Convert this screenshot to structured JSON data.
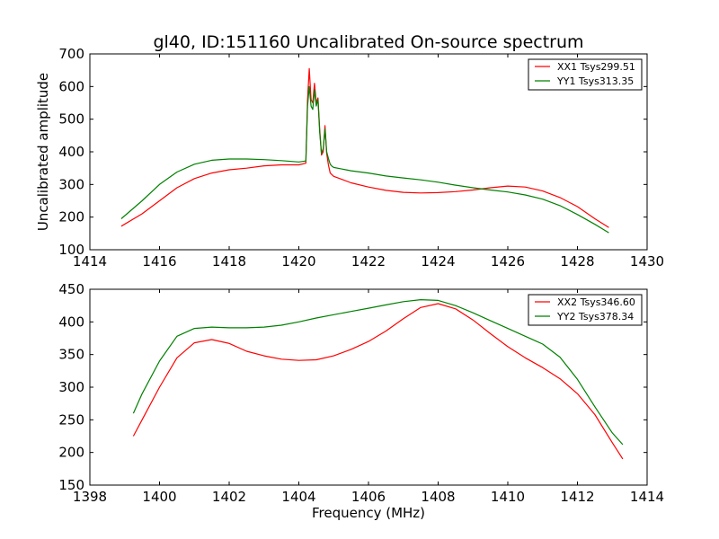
{
  "chart_data": [
    {
      "type": "line",
      "title": "gl40, ID:151160 Uncalibrated On-source spectrum",
      "xlabel": "",
      "ylabel": "Uncalibrated amplitude",
      "xlim": [
        1414,
        1430
      ],
      "ylim": [
        100,
        700
      ],
      "xticks": [
        "1414",
        "1416",
        "1418",
        "1420",
        "1422",
        "1424",
        "1426",
        "1428",
        "1430"
      ],
      "yticks": [
        "100",
        "200",
        "300",
        "400",
        "500",
        "600",
        "700"
      ],
      "legend_position": "top-right",
      "series": [
        {
          "name": "XX1 Tsys299.51",
          "color": "#ff0000",
          "x": [
            1414.9,
            1415.5,
            1416.0,
            1416.5,
            1417.0,
            1417.5,
            1418.0,
            1418.5,
            1419.0,
            1419.5,
            1420.0,
            1420.2,
            1420.25,
            1420.3,
            1420.35,
            1420.4,
            1420.45,
            1420.5,
            1420.55,
            1420.6,
            1420.65,
            1420.7,
            1420.75,
            1420.8,
            1420.85,
            1420.9,
            1420.95,
            1421.0,
            1421.5,
            1422.0,
            1422.5,
            1423.0,
            1423.5,
            1424.0,
            1424.5,
            1425.0,
            1425.5,
            1426.0,
            1426.5,
            1427.0,
            1427.5,
            1428.0,
            1428.5,
            1428.9
          ],
          "values": [
            172,
            210,
            250,
            290,
            318,
            335,
            345,
            350,
            357,
            360,
            360,
            365,
            560,
            655,
            560,
            550,
            610,
            550,
            565,
            470,
            390,
            400,
            480,
            395,
            360,
            335,
            330,
            325,
            305,
            292,
            282,
            276,
            274,
            275,
            278,
            283,
            290,
            295,
            292,
            280,
            260,
            232,
            195,
            168
          ]
        },
        {
          "name": "YY1 Tsys313.35",
          "color": "#008000",
          "x": [
            1414.9,
            1415.5,
            1416.0,
            1416.5,
            1417.0,
            1417.5,
            1418.0,
            1418.5,
            1419.0,
            1419.5,
            1420.0,
            1420.2,
            1420.25,
            1420.3,
            1420.35,
            1420.4,
            1420.45,
            1420.5,
            1420.55,
            1420.6,
            1420.65,
            1420.7,
            1420.75,
            1420.8,
            1420.85,
            1420.9,
            1420.95,
            1421.0,
            1421.5,
            1422.0,
            1422.5,
            1423.0,
            1423.5,
            1424.0,
            1424.5,
            1425.0,
            1425.5,
            1426.0,
            1426.5,
            1427.0,
            1427.5,
            1428.0,
            1428.5,
            1428.9
          ],
          "values": [
            195,
            250,
            300,
            338,
            362,
            374,
            378,
            378,
            376,
            373,
            369,
            372,
            540,
            600,
            540,
            530,
            590,
            540,
            560,
            460,
            395,
            410,
            470,
            400,
            380,
            362,
            356,
            352,
            342,
            335,
            326,
            320,
            314,
            307,
            298,
            290,
            283,
            277,
            268,
            255,
            235,
            208,
            178,
            152
          ]
        }
      ]
    },
    {
      "type": "line",
      "title": "",
      "xlabel": "Frequency (MHz)",
      "ylabel": "",
      "xlim": [
        1398,
        1414
      ],
      "ylim": [
        150,
        450
      ],
      "xticks": [
        "1398",
        "1400",
        "1402",
        "1404",
        "1406",
        "1408",
        "1410",
        "1412",
        "1414"
      ],
      "yticks": [
        "150",
        "200",
        "250",
        "300",
        "350",
        "400",
        "450"
      ],
      "legend_position": "top-right",
      "series": [
        {
          "name": "XX2 Tsys346.60",
          "color": "#ff0000",
          "x": [
            1399.25,
            1399.5,
            1400.0,
            1400.5,
            1401.0,
            1401.5,
            1402.0,
            1402.5,
            1403.0,
            1403.5,
            1404.0,
            1404.5,
            1405.0,
            1405.5,
            1406.0,
            1406.5,
            1407.0,
            1407.5,
            1408.0,
            1408.5,
            1409.0,
            1409.5,
            1410.0,
            1410.5,
            1411.0,
            1411.5,
            1412.0,
            1412.5,
            1413.0,
            1413.3
          ],
          "values": [
            225,
            250,
            300,
            345,
            368,
            373,
            367,
            355,
            348,
            343,
            341,
            342,
            348,
            358,
            370,
            386,
            405,
            422,
            428,
            420,
            403,
            382,
            362,
            345,
            330,
            313,
            290,
            258,
            215,
            190
          ]
        },
        {
          "name": "YY2 Tsys378.34",
          "color": "#008000",
          "x": [
            1399.25,
            1399.5,
            1400.0,
            1400.5,
            1401.0,
            1401.5,
            1402.0,
            1402.5,
            1403.0,
            1403.5,
            1404.0,
            1404.5,
            1405.0,
            1405.5,
            1406.0,
            1406.5,
            1407.0,
            1407.5,
            1408.0,
            1408.5,
            1409.0,
            1409.5,
            1410.0,
            1410.5,
            1411.0,
            1411.5,
            1412.0,
            1412.5,
            1413.0,
            1413.3
          ],
          "values": [
            260,
            290,
            340,
            378,
            390,
            392,
            391,
            391,
            392,
            395,
            400,
            406,
            411,
            416,
            421,
            426,
            431,
            434,
            433,
            425,
            414,
            402,
            390,
            378,
            366,
            346,
            312,
            270,
            230,
            212
          ]
        }
      ]
    }
  ]
}
